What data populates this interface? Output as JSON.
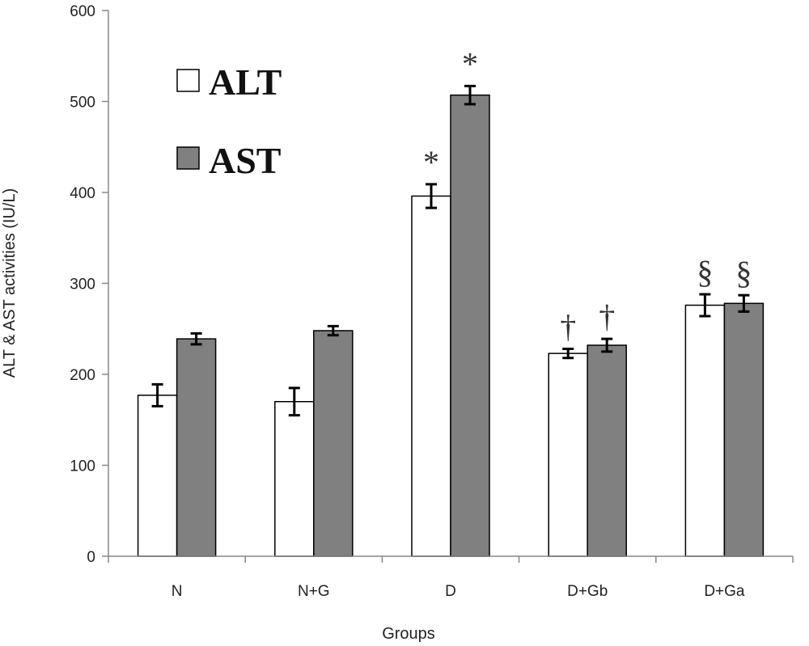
{
  "chart_data": {
    "type": "bar",
    "categories": [
      "N",
      "N+G",
      "D",
      "D+Gb",
      "D+Ga"
    ],
    "series": [
      {
        "name": "ALT",
        "values": [
          177,
          170,
          396,
          223,
          276
        ],
        "errors": [
          12,
          15,
          13,
          5,
          12
        ],
        "color": "#ffffff"
      },
      {
        "name": "AST",
        "values": [
          239,
          248,
          507,
          232,
          278
        ],
        "errors": [
          6,
          5,
          10,
          7,
          9
        ],
        "color": "#808080"
      }
    ],
    "annotations": [
      {
        "category": "D",
        "series": "ALT",
        "text": "*"
      },
      {
        "category": "D",
        "series": "AST",
        "text": "*"
      },
      {
        "category": "D+Gb",
        "series": "ALT",
        "text": "†"
      },
      {
        "category": "D+Gb",
        "series": "AST",
        "text": "†"
      },
      {
        "category": "D+Ga",
        "series": "ALT",
        "text": "§"
      },
      {
        "category": "D+Ga",
        "series": "AST",
        "text": "§"
      }
    ],
    "xlabel": "Groups",
    "ylabel": "ALT & AST activities (IU/L)",
    "ylim": [
      0,
      600
    ],
    "yticks": [
      0,
      100,
      200,
      300,
      400,
      500,
      600
    ],
    "grid": false,
    "legend_position": "top-left"
  }
}
